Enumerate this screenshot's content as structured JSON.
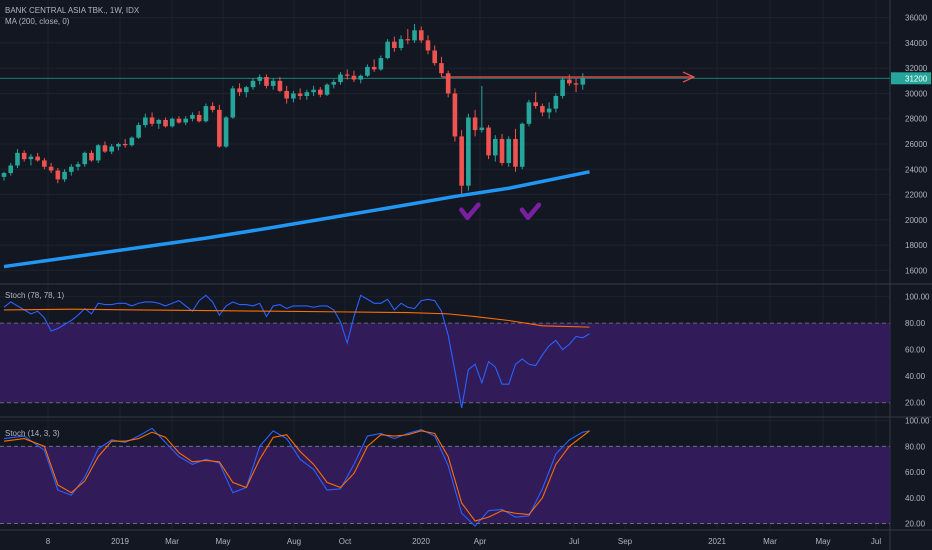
{
  "colors": {
    "background": "#131722",
    "grid": "#1e222d",
    "separator": "#363a45",
    "axis_text": "#b2b5be",
    "candle_up": "#26a69a",
    "candle_down": "#ef5350",
    "ma_line": "#2196f3",
    "resistance_line": "#ef5350",
    "price_line": "#26a69a",
    "price_tag": "#26a69a",
    "checkmark": "#7b1fa2",
    "stoch_band": "#311b58",
    "stoch_k": "#2962ff",
    "stoch_d": "#ff6d00"
  },
  "legend": {
    "symbol": "BANK CENTRAL ASIA TBK., 1W, IDX",
    "ma": "MA (200, close, 0)",
    "stoch1": "Stoch (78, 78, 1)",
    "stoch2": "Stoch (14, 3, 3)"
  },
  "chart_data": [
    {
      "type": "candlestick",
      "title": "BANK CENTRAL ASIA TBK., 1W, IDX",
      "ylim": [
        15000,
        37000
      ],
      "yticks": [
        16000,
        18000,
        20000,
        22000,
        24000,
        26000,
        28000,
        30000,
        32000,
        34000,
        36000
      ],
      "last_price_label": "31200",
      "last_price": 31200,
      "x_labels": [
        "8",
        "2019",
        "Mar",
        "May",
        "Aug",
        "Oct",
        "2020",
        "Apr",
        "Jul",
        "Sep",
        "2021",
        "Mar",
        "May",
        "Jul"
      ],
      "candles": [
        [
          23400,
          23800,
          23100,
          23700
        ],
        [
          23700,
          24500,
          23500,
          24300
        ],
        [
          24300,
          25600,
          24100,
          25300
        ],
        [
          25300,
          25500,
          24600,
          24800
        ],
        [
          24800,
          25200,
          24300,
          25000
        ],
        [
          25000,
          25300,
          24600,
          24700
        ],
        [
          24700,
          24900,
          24000,
          24200
        ],
        [
          24200,
          24500,
          23700,
          23900
        ],
        [
          23900,
          24100,
          22900,
          23200
        ],
        [
          23200,
          24000,
          23000,
          23800
        ],
        [
          23800,
          24400,
          23500,
          24200
        ],
        [
          24200,
          24600,
          23900,
          24400
        ],
        [
          24400,
          25400,
          24200,
          25300
        ],
        [
          25300,
          25500,
          24600,
          24700
        ],
        [
          24700,
          26000,
          24500,
          25900
        ],
        [
          25900,
          26200,
          25300,
          25400
        ],
        [
          25400,
          26000,
          25200,
          25800
        ],
        [
          25800,
          26100,
          25500,
          26000
        ],
        [
          26000,
          26400,
          25700,
          25900
        ],
        [
          25900,
          26600,
          25800,
          26500
        ],
        [
          26500,
          27700,
          26400,
          27500
        ],
        [
          27500,
          28400,
          27300,
          28100
        ],
        [
          28100,
          28500,
          27400,
          27600
        ],
        [
          27600,
          28000,
          27200,
          27900
        ],
        [
          27900,
          28100,
          27300,
          27400
        ],
        [
          27400,
          28100,
          27300,
          28000
        ],
        [
          28000,
          28200,
          27600,
          27700
        ],
        [
          27700,
          28200,
          27500,
          28000
        ],
        [
          28000,
          28500,
          27800,
          28300
        ],
        [
          28300,
          28600,
          27700,
          27800
        ],
        [
          27800,
          29200,
          27700,
          29000
        ],
        [
          29000,
          29300,
          28500,
          28700
        ],
        [
          28700,
          29100,
          25700,
          25800
        ],
        [
          25800,
          28200,
          25700,
          28100
        ],
        [
          28100,
          30600,
          28000,
          30400
        ],
        [
          30400,
          30800,
          29800,
          30100
        ],
        [
          30100,
          30600,
          29700,
          30500
        ],
        [
          30500,
          31200,
          30300,
          31000
        ],
        [
          31000,
          31500,
          30700,
          31300
        ],
        [
          31300,
          31500,
          30400,
          30600
        ],
        [
          30600,
          31200,
          30300,
          31000
        ],
        [
          31000,
          31300,
          30100,
          30200
        ],
        [
          30200,
          30600,
          29200,
          29600
        ],
        [
          29600,
          30200,
          29300,
          30000
        ],
        [
          30000,
          30400,
          29500,
          29800
        ],
        [
          29800,
          30300,
          29500,
          30100
        ],
        [
          30100,
          30600,
          29800,
          30300
        ],
        [
          30300,
          30500,
          29700,
          29900
        ],
        [
          29900,
          30800,
          29800,
          30700
        ],
        [
          30700,
          31100,
          30400,
          30900
        ],
        [
          30900,
          31700,
          30700,
          31500
        ],
        [
          31500,
          31900,
          31100,
          31400
        ],
        [
          31400,
          31800,
          30900,
          31100
        ],
        [
          31100,
          31500,
          30800,
          31400
        ],
        [
          31400,
          32300,
          31300,
          32100
        ],
        [
          32100,
          32700,
          31700,
          31900
        ],
        [
          31900,
          33000,
          31800,
          32800
        ],
        [
          32800,
          34300,
          32700,
          34100
        ],
        [
          34100,
          34500,
          33300,
          33600
        ],
        [
          33600,
          34600,
          33400,
          34300
        ],
        [
          34300,
          35100,
          33900,
          34200
        ],
        [
          34200,
          35500,
          34000,
          35000
        ],
        [
          35000,
          35300,
          34000,
          34200
        ],
        [
          34200,
          34600,
          33100,
          33400
        ],
        [
          33400,
          33800,
          32200,
          32400
        ],
        [
          32400,
          32900,
          31300,
          31600
        ],
        [
          31600,
          31800,
          29700,
          30000
        ],
        [
          30000,
          30400,
          26200,
          26600
        ],
        [
          26600,
          27100,
          21800,
          22700
        ],
        [
          22700,
          28400,
          22300,
          28100
        ],
        [
          28100,
          28700,
          26600,
          27100
        ],
        [
          27100,
          30600,
          26900,
          27300
        ],
        [
          27300,
          27500,
          24800,
          25100
        ],
        [
          25100,
          26700,
          24600,
          26400
        ],
        [
          26400,
          26800,
          24300,
          24500
        ],
        [
          24500,
          26600,
          24200,
          26400
        ],
        [
          26400,
          27200,
          23800,
          24200
        ],
        [
          24200,
          27700,
          24000,
          27600
        ],
        [
          27600,
          29500,
          27400,
          29300
        ],
        [
          29300,
          30100,
          28800,
          29000
        ],
        [
          29000,
          29200,
          28200,
          28500
        ],
        [
          28500,
          29300,
          28000,
          28800
        ],
        [
          28800,
          30000,
          28500,
          29800
        ],
        [
          29800,
          31300,
          29600,
          31100
        ],
        [
          31100,
          31500,
          30600,
          30800
        ],
        [
          30800,
          31200,
          30100,
          30700
        ],
        [
          30700,
          31600,
          30300,
          31200
        ]
      ],
      "ma200": {
        "name": "MA (200, close, 0)",
        "x": [
          0,
          10,
          20,
          30,
          40,
          50,
          60,
          67,
          75,
          87
        ],
        "values": [
          16300,
          17050,
          17800,
          18550,
          19400,
          20300,
          21200,
          21850,
          22500,
          23800
        ]
      },
      "resistance_level": 31300,
      "checkmarks_at_bar": [
        69,
        78
      ]
    },
    {
      "type": "line",
      "title": "Stoch (78, 78, 1)",
      "ylim": [
        10,
        105
      ],
      "yticks": [
        20,
        40,
        60,
        80,
        100
      ],
      "band": [
        20,
        80
      ],
      "k": [
        92,
        96,
        93,
        90,
        87,
        89,
        84,
        74,
        76,
        79,
        82,
        86,
        91,
        87,
        95,
        94,
        94,
        95,
        95,
        93,
        95,
        96,
        96,
        95,
        93,
        95,
        97,
        93,
        89,
        97,
        101,
        96,
        86,
        93,
        96,
        94,
        94,
        93,
        95,
        85,
        93,
        94,
        91,
        93,
        93,
        93,
        92,
        93,
        93,
        90,
        81,
        65,
        85,
        101,
        98,
        95,
        95,
        98,
        90,
        95,
        92,
        91,
        97,
        98,
        97,
        89,
        71,
        44,
        16,
        45,
        49,
        35,
        51,
        47,
        34,
        34,
        49,
        53,
        49,
        48
      ],
      "k_x": [
        0,
        1,
        2,
        3,
        4,
        5,
        6,
        7,
        8,
        9,
        10,
        11,
        12,
        13,
        14,
        15,
        16,
        17,
        18,
        19,
        20,
        21,
        22,
        23,
        24,
        25,
        26,
        27,
        28,
        29,
        30,
        31,
        32,
        33,
        34,
        35,
        36,
        37,
        38,
        39,
        40,
        41,
        42,
        43,
        44,
        45,
        46,
        47,
        48,
        49,
        50,
        51,
        52,
        53,
        54,
        55,
        56,
        57,
        58,
        59,
        60,
        61,
        62,
        63,
        64,
        65,
        66,
        67,
        68,
        69,
        70,
        71,
        72,
        73,
        74,
        75,
        76,
        77,
        78,
        79
      ],
      "k_tail": [
        [
          79,
          48
        ],
        [
          80,
          56
        ],
        [
          81,
          63
        ],
        [
          82,
          67
        ],
        [
          83,
          60
        ],
        [
          84,
          64
        ],
        [
          85,
          70
        ],
        [
          86,
          69
        ],
        [
          87,
          72
        ]
      ],
      "d_x": [
        0,
        10,
        20,
        30,
        40,
        50,
        60,
        66,
        70,
        75,
        80,
        87
      ],
      "d": [
        90,
        90.5,
        90,
        89.5,
        89,
        88.5,
        88,
        87,
        85,
        82,
        78,
        77
      ]
    },
    {
      "type": "line",
      "title": "Stoch (14, 3, 3)",
      "ylim": [
        15,
        102
      ],
      "yticks": [
        20,
        40,
        60,
        80,
        100
      ],
      "band": [
        20,
        80
      ],
      "k_x": [
        0,
        3,
        6,
        8,
        10,
        12,
        14,
        16,
        18,
        20,
        22,
        24,
        26,
        28,
        30,
        32,
        34,
        36,
        38,
        40,
        42,
        44,
        46,
        48,
        50,
        52,
        54,
        56,
        58,
        60,
        62,
        64,
        66,
        68,
        70,
        72,
        74,
        76,
        78,
        80,
        82,
        84,
        86,
        87
      ],
      "k": [
        86,
        88,
        77,
        46,
        42,
        56,
        78,
        85,
        83,
        88,
        94,
        83,
        72,
        66,
        70,
        67,
        44,
        48,
        80,
        92,
        86,
        70,
        62,
        46,
        47,
        66,
        88,
        90,
        86,
        90,
        93,
        88,
        65,
        28,
        18,
        30,
        31,
        25,
        26,
        47,
        74,
        85,
        91,
        92
      ],
      "d_x": [
        0,
        3,
        6,
        8,
        10,
        12,
        14,
        16,
        18,
        20,
        22,
        24,
        26,
        28,
        30,
        32,
        34,
        36,
        38,
        40,
        42,
        44,
        46,
        48,
        50,
        52,
        54,
        56,
        58,
        60,
        62,
        64,
        66,
        68,
        70,
        72,
        74,
        76,
        78,
        80,
        82,
        84,
        86,
        87
      ],
      "d": [
        84,
        86,
        80,
        50,
        44,
        53,
        72,
        84,
        84,
        86,
        91,
        87,
        75,
        68,
        69,
        68,
        52,
        48,
        70,
        87,
        89,
        76,
        66,
        52,
        48,
        59,
        80,
        89,
        88,
        89,
        92,
        90,
        72,
        36,
        22,
        25,
        30,
        28,
        27,
        40,
        66,
        80,
        88,
        92
      ]
    }
  ]
}
